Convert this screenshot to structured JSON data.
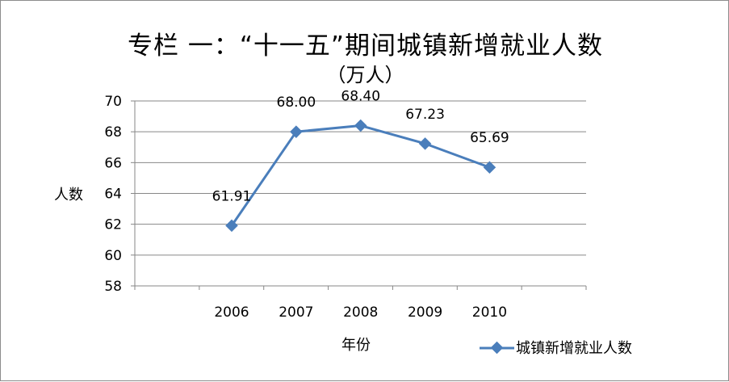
{
  "chart_data": {
    "type": "line",
    "title": "专栏 一：“十一五”期间城镇新增就业人数",
    "subtitle": "（万人）",
    "xlabel": "年份",
    "ylabel": "人数",
    "categories": [
      "2006",
      "2007",
      "2008",
      "2009",
      "2010"
    ],
    "series": [
      {
        "name": "城镇新增就业人数",
        "values": [
          61.91,
          68.0,
          68.4,
          67.23,
          65.69
        ],
        "labels": [
          "61.91",
          "68.00",
          "68.40",
          "67.23",
          "65.69"
        ],
        "color": "#4a7ebb"
      }
    ],
    "ylim": [
      58,
      70
    ],
    "yticks": [
      "58",
      "60",
      "62",
      "64",
      "66",
      "68",
      "70"
    ],
    "grid": true,
    "legend": "bottom-right"
  }
}
